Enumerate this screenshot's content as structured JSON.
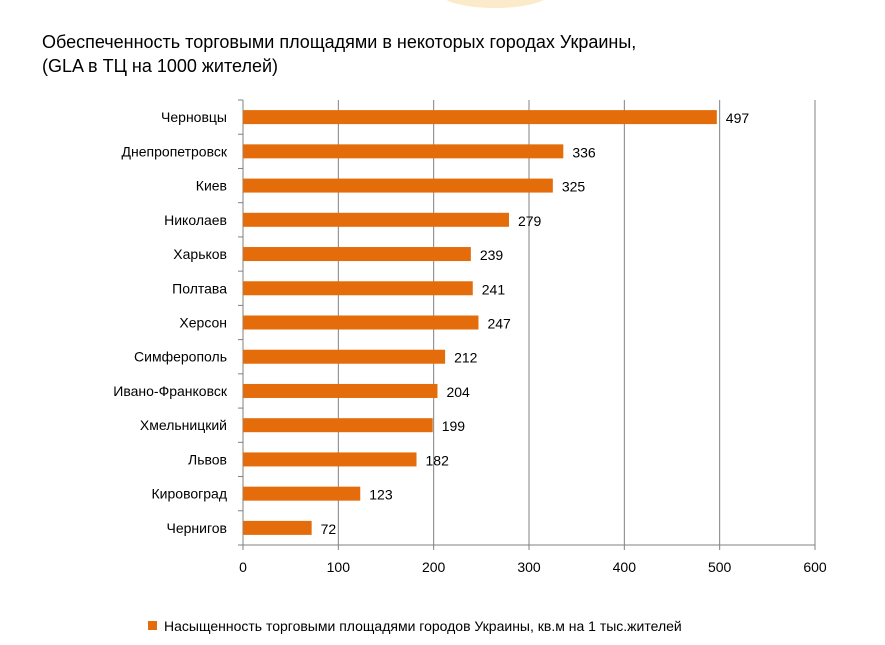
{
  "chart_data": {
    "type": "bar",
    "orientation": "horizontal",
    "title_lines": [
      "Обеспеченность торговыми площадями в некоторых городах Украины,",
      "(GLA в ТЦ на 1000 жителей)"
    ],
    "categories": [
      "Черновцы",
      "Днепропетровск",
      "Киев",
      "Николаев",
      "Харьков",
      "Полтава",
      "Херсон",
      "Симферополь",
      "Ивано-Франковск",
      "Хмельницкий",
      "Львов",
      "Кировоград",
      "Чернигов"
    ],
    "series": [
      {
        "name": "Насыщенность  торговыми площадями городов Украины,  кв.м на 1 тыс.жителей",
        "values": [
          497,
          336,
          325,
          279,
          239,
          241,
          247,
          212,
          204,
          199,
          182,
          123,
          72
        ]
      }
    ],
    "xlim": [
      0,
      600
    ],
    "xticks": [
      0,
      100,
      200,
      300,
      400,
      500,
      600
    ],
    "grid": true,
    "legend_position": "bottom",
    "bar_color": "#e46c0a",
    "grid_color": "#808080"
  }
}
